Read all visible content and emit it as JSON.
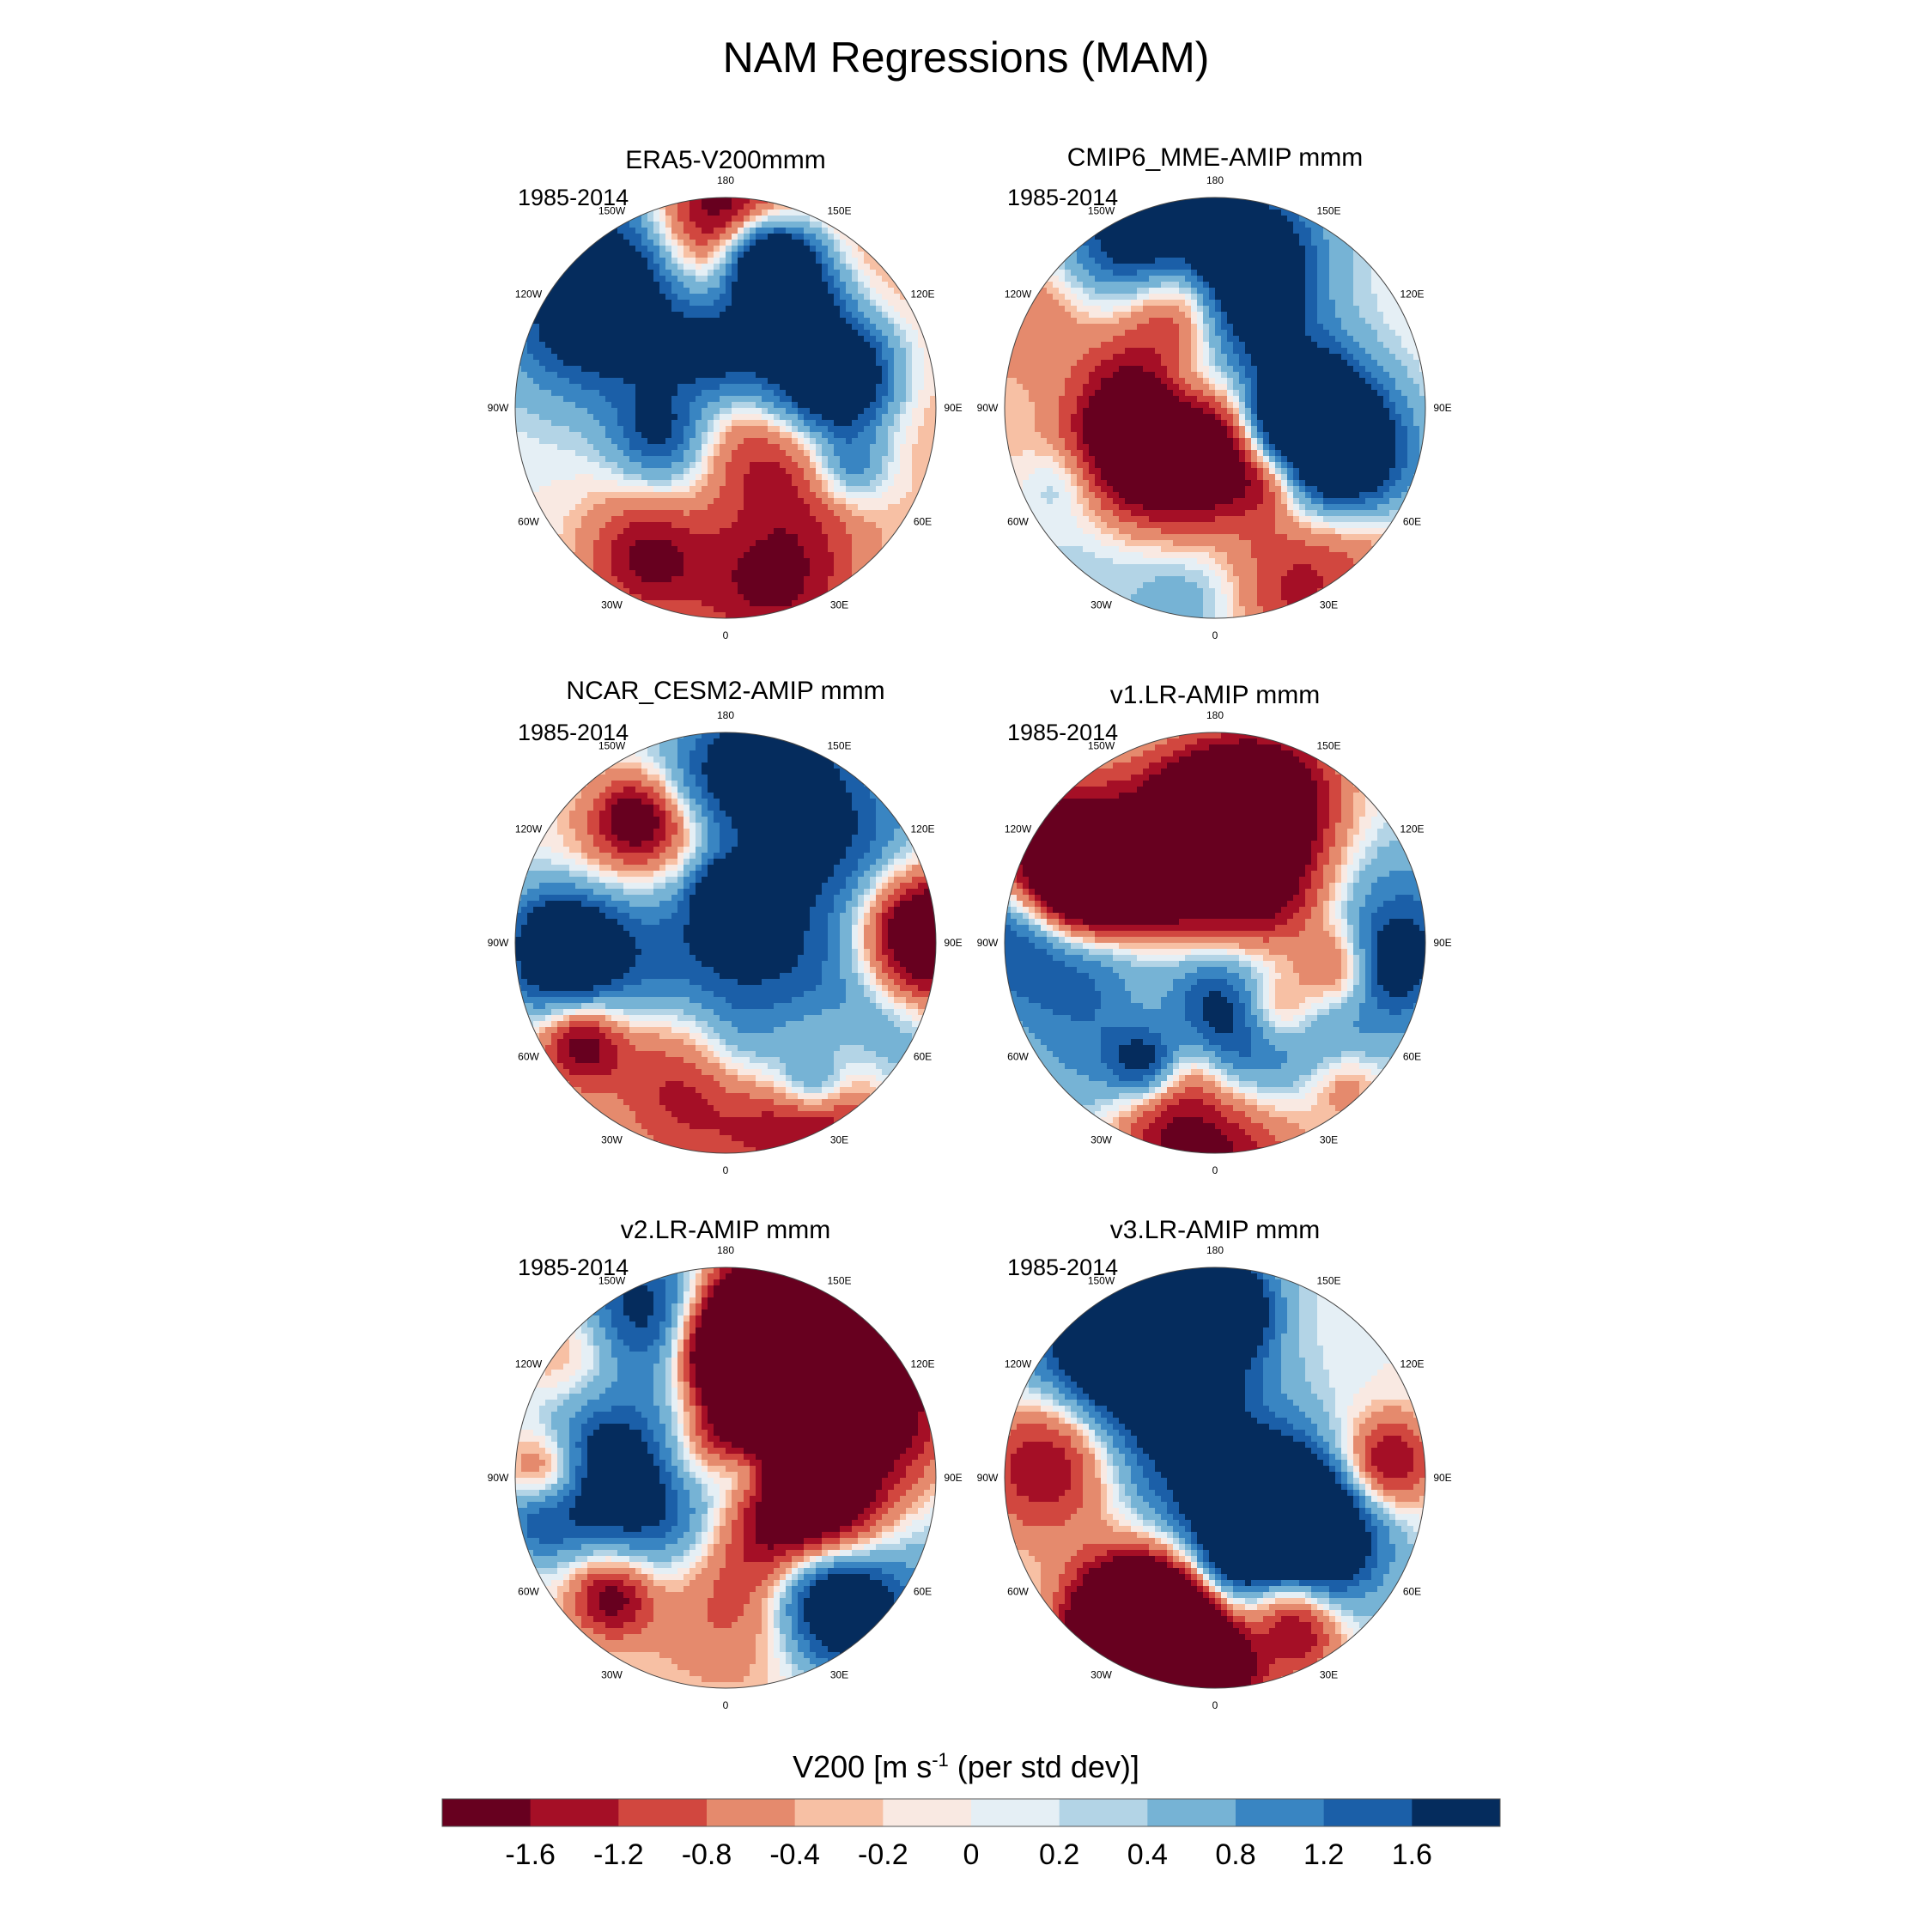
{
  "title": "NAM Regressions (MAM)",
  "period": "1985-2014",
  "lon_labels": [
    "180",
    "150E",
    "120E",
    "90E",
    "60E",
    "30E",
    "0",
    "30W",
    "60W",
    "90W",
    "120W",
    "150W"
  ],
  "colors": [
    "#67001f",
    "#a50f26",
    "#d1473f",
    "#e58a6d",
    "#f7c0a4",
    "#f9e9e2",
    "#e5eff5",
    "#b3d4e6",
    "#76b3d5",
    "#3985c2",
    "#1b5fa8",
    "#052c5d"
  ],
  "colorbar": {
    "title_main": "V200 [m s",
    "title_sup": "-1",
    "title_tail": " (per std dev)]",
    "labels": [
      "-1.6",
      "-1.2",
      "-0.8",
      "-0.4",
      "-0.2",
      "0",
      "0.2",
      "0.4",
      "0.8",
      "1.2",
      "1.6"
    ]
  },
  "chart_data": {
    "type": "heatmap",
    "projection": "north polar stereographic",
    "variable": "V200",
    "units": "m s-1 (per std dev)",
    "levels": [
      -1.6,
      -1.2,
      -0.8,
      -0.4,
      -0.2,
      0,
      0.2,
      0.4,
      0.8,
      1.2,
      1.6
    ],
    "panels": [
      {
        "title": "ERA5-V200mmm",
        "period": "1985-2014",
        "seed": 11,
        "amp": 1.0
      },
      {
        "title": "CMIP6_MME-AMIP  mmm",
        "period": "1985-2014",
        "seed": 23,
        "amp": 0.9
      },
      {
        "title": "NCAR_CESM2-AMIP  mmm",
        "period": "1985-2014",
        "seed": 37,
        "amp": 1.0
      },
      {
        "title": "v1.LR-AMIP  mmm",
        "period": "1985-2014",
        "seed": 41,
        "amp": 1.0
      },
      {
        "title": "v2.LR-AMIP  mmm",
        "period": "1985-2014",
        "seed": 53,
        "amp": 1.2
      },
      {
        "title": "v3.LR-AMIP  mmm",
        "period": "1985-2014",
        "seed": 67,
        "amp": 1.2
      }
    ]
  }
}
